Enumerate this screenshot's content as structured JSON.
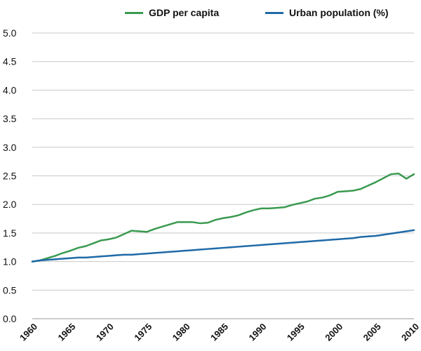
{
  "chart_data": {
    "type": "line",
    "title": "",
    "xlabel": "",
    "ylabel": "",
    "xlim": [
      1960,
      2010
    ],
    "ylim": [
      0,
      5
    ],
    "yticks": [
      "0.0",
      "0.5",
      "1.0",
      "1.5",
      "2.0",
      "2.5",
      "3.0",
      "3.5",
      "4.0",
      "4.5",
      "5.0"
    ],
    "xticks": [
      "1960",
      "1965",
      "1970",
      "1975",
      "1980",
      "1985",
      "1990",
      "1995",
      "2000",
      "2005",
      "2010"
    ],
    "grid": "horizontal",
    "legend_position": "top",
    "x": [
      1960,
      1961,
      1962,
      1963,
      1964,
      1965,
      1966,
      1967,
      1968,
      1969,
      1970,
      1971,
      1972,
      1973,
      1974,
      1975,
      1976,
      1977,
      1978,
      1979,
      1980,
      1981,
      1982,
      1983,
      1984,
      1985,
      1986,
      1987,
      1988,
      1989,
      1990,
      1991,
      1992,
      1993,
      1994,
      1995,
      1996,
      1997,
      1998,
      1999,
      2000,
      2001,
      2002,
      2003,
      2004,
      2005,
      2006,
      2007,
      2008,
      2009,
      2010
    ],
    "series": [
      {
        "name": "GDP per capita",
        "color": "#3a9a50",
        "values": [
          1.0,
          1.02,
          1.06,
          1.1,
          1.15,
          1.19,
          1.24,
          1.27,
          1.32,
          1.37,
          1.39,
          1.42,
          1.48,
          1.54,
          1.53,
          1.52,
          1.57,
          1.61,
          1.65,
          1.69,
          1.69,
          1.69,
          1.67,
          1.68,
          1.73,
          1.76,
          1.78,
          1.81,
          1.86,
          1.9,
          1.93,
          1.93,
          1.94,
          1.95,
          1.99,
          2.02,
          2.05,
          2.1,
          2.12,
          2.16,
          2.22,
          2.23,
          2.24,
          2.27,
          2.33,
          2.39,
          2.46,
          2.53,
          2.54,
          2.45,
          2.53
        ]
      },
      {
        "name": "Urban population (%)",
        "color": "#1f6aa8",
        "values": [
          1.0,
          1.02,
          1.03,
          1.04,
          1.05,
          1.06,
          1.07,
          1.07,
          1.08,
          1.09,
          1.1,
          1.11,
          1.12,
          1.12,
          1.13,
          1.14,
          1.15,
          1.16,
          1.17,
          1.18,
          1.19,
          1.2,
          1.21,
          1.22,
          1.23,
          1.24,
          1.25,
          1.26,
          1.27,
          1.28,
          1.29,
          1.3,
          1.31,
          1.32,
          1.33,
          1.34,
          1.35,
          1.36,
          1.37,
          1.38,
          1.39,
          1.4,
          1.41,
          1.43,
          1.44,
          1.45,
          1.47,
          1.49,
          1.51,
          1.53,
          1.55
        ]
      }
    ]
  }
}
